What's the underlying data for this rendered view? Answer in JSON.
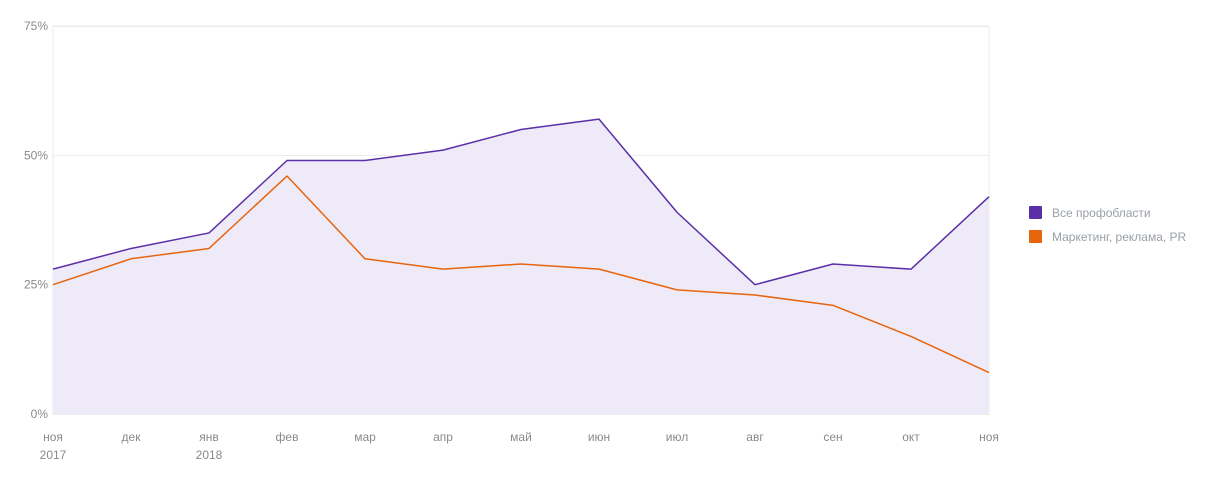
{
  "chart_data": {
    "type": "line",
    "categories": [
      "ноя",
      "дек",
      "янв",
      "фев",
      "мар",
      "апр",
      "май",
      "июн",
      "июл",
      "авг",
      "сен",
      "окт",
      "ноя"
    ],
    "year_labels": [
      {
        "category_index": 0,
        "label": "2017"
      },
      {
        "category_index": 2,
        "label": "2018"
      }
    ],
    "series": [
      {
        "name": "Все профобласти",
        "color": "#5b2fa8",
        "fill": "#eeeaf7",
        "area": true,
        "values": [
          28,
          32,
          35,
          49,
          49,
          51,
          55,
          57,
          39,
          25,
          29,
          28,
          42
        ]
      },
      {
        "name": "Маркетинг, реклама, PR",
        "color": "#e8650f",
        "area": false,
        "values": [
          25,
          30,
          32,
          46,
          30,
          28,
          29,
          28,
          24,
          23,
          21,
          15,
          8
        ]
      }
    ],
    "y_ticks": [
      0,
      25,
      50,
      75
    ],
    "y_tick_labels": [
      "0%",
      "25%",
      "50%",
      "75%"
    ],
    "ylim": [
      0,
      75
    ],
    "grid": true,
    "legend_position": "right"
  }
}
